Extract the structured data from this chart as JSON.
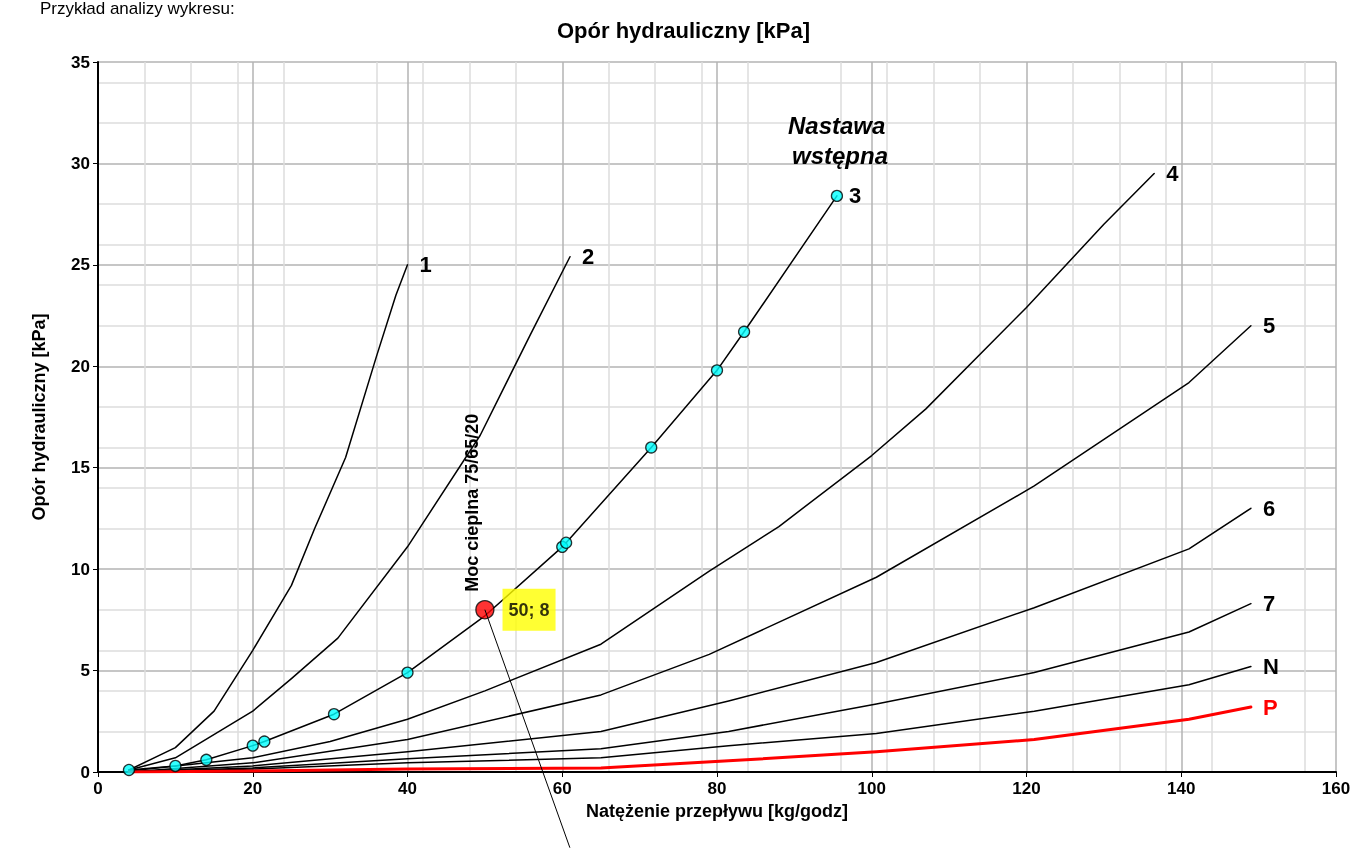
{
  "chart_data": {
    "type": "line",
    "title": "Opór hydrauliczny [kPa]",
    "xlabel": "Natężenie przepływu [kg/godz]",
    "ylabel": "Opór hydrauliczny [kPa]",
    "xlim": [
      0,
      160
    ],
    "xticks": [
      0,
      20,
      40,
      60,
      80,
      100,
      120,
      140,
      160
    ],
    "ylim": [
      0,
      35
    ],
    "yticks": [
      0,
      5,
      10,
      15,
      20,
      25,
      30,
      35
    ],
    "grid": true,
    "legend": false,
    "marker": "none",
    "annotations": [
      "Przykład analizy wykresu:",
      "Nastawa wstępna",
      {
        "text": "Moc cieplna 75/65/20",
        "x": 50,
        "y": 8
      }
    ],
    "series": [
      {
        "name": "1",
        "color": "#000000",
        "x": [
          4,
          10,
          15,
          20,
          25,
          28,
          32,
          36,
          38.5,
          40
        ],
        "values": [
          0.1,
          1.2,
          3,
          6,
          9.2,
          12,
          15.5,
          20.5,
          23.5,
          25
        ]
      },
      {
        "name": "2",
        "color": "#000000",
        "x": [
          4,
          10,
          20,
          25,
          31,
          40,
          49.4,
          55.8,
          61
        ],
        "values": [
          0.1,
          0.7,
          3,
          4.6,
          6.6,
          11.1,
          16.6,
          21.5,
          25.4
        ]
      },
      {
        "name": "3",
        "color": "#000000",
        "x": [
          4,
          10,
          14,
          20,
          21.5,
          30.5,
          40,
          50,
          60,
          60.5,
          71.5,
          80,
          83.5,
          95.5
        ],
        "values": [
          0.1,
          0.3,
          0.6,
          1.3,
          1.5,
          2.85,
          4.9,
          7.7,
          11.1,
          11.3,
          16,
          19.8,
          21.7,
          28.4
        ]
      },
      {
        "name": "4",
        "color": "#000000",
        "x": [
          4,
          20,
          30,
          40,
          50,
          65,
          79,
          88,
          100,
          107,
          120,
          130,
          136.5
        ],
        "values": [
          0.05,
          0.7,
          1.5,
          2.6,
          4,
          6.3,
          9.9,
          12.1,
          15.6,
          17.9,
          22.9,
          27,
          29.5
        ]
      },
      {
        "name": "5",
        "color": "#000000",
        "x": [
          4,
          20,
          40,
          65,
          79,
          100.6,
          121,
          141,
          149
        ],
        "values": [
          0,
          0.45,
          1.6,
          3.8,
          5.8,
          9.6,
          14.1,
          19.2,
          22
        ]
      },
      {
        "name": "6",
        "color": "#000000",
        "x": [
          4,
          20,
          40,
          65,
          81.5,
          100.6,
          121,
          141,
          149
        ],
        "values": [
          0,
          0.3,
          1,
          2,
          3.5,
          5.4,
          8.1,
          11,
          13
        ]
      },
      {
        "name": "7",
        "color": "#000000",
        "x": [
          4,
          20,
          40,
          65,
          81.5,
          100.6,
          121,
          141,
          149
        ],
        "values": [
          0,
          0.2,
          0.65,
          1.15,
          2,
          3.35,
          4.9,
          6.9,
          8.3
        ]
      },
      {
        "name": "N",
        "color": "#000000",
        "x": [
          4,
          20,
          40,
          65,
          81.5,
          100.6,
          121,
          141,
          149
        ],
        "values": [
          0,
          0.15,
          0.45,
          0.7,
          1.3,
          1.9,
          3,
          4.3,
          5.2
        ]
      },
      {
        "name": "P",
        "color": "#ff0000",
        "x": [
          4,
          20,
          40,
          65,
          81.5,
          100.6,
          121,
          141,
          149
        ],
        "values": [
          0,
          0.05,
          0.15,
          0.2,
          0.55,
          1,
          1.6,
          2.6,
          3.2
        ]
      },
      {
        "type": "scatter",
        "color": "#00ffff",
        "marker": "circle",
        "x": [
          4,
          10,
          14,
          20,
          21.5,
          30.5,
          40,
          60,
          60.5,
          71.5,
          80,
          83.5,
          95.5
        ],
        "values": [
          0.1,
          0.3,
          0.6,
          1.3,
          1.5,
          2.85,
          4.9,
          11.1,
          11.3,
          16,
          19.8,
          21.7,
          28.4
        ]
      },
      {
        "type": "scatter",
        "color": "#ff0000",
        "marker": "circle",
        "x": [
          50
        ],
        "values": [
          8
        ],
        "value_labels": [
          "50; 8"
        ]
      }
    ]
  }
}
